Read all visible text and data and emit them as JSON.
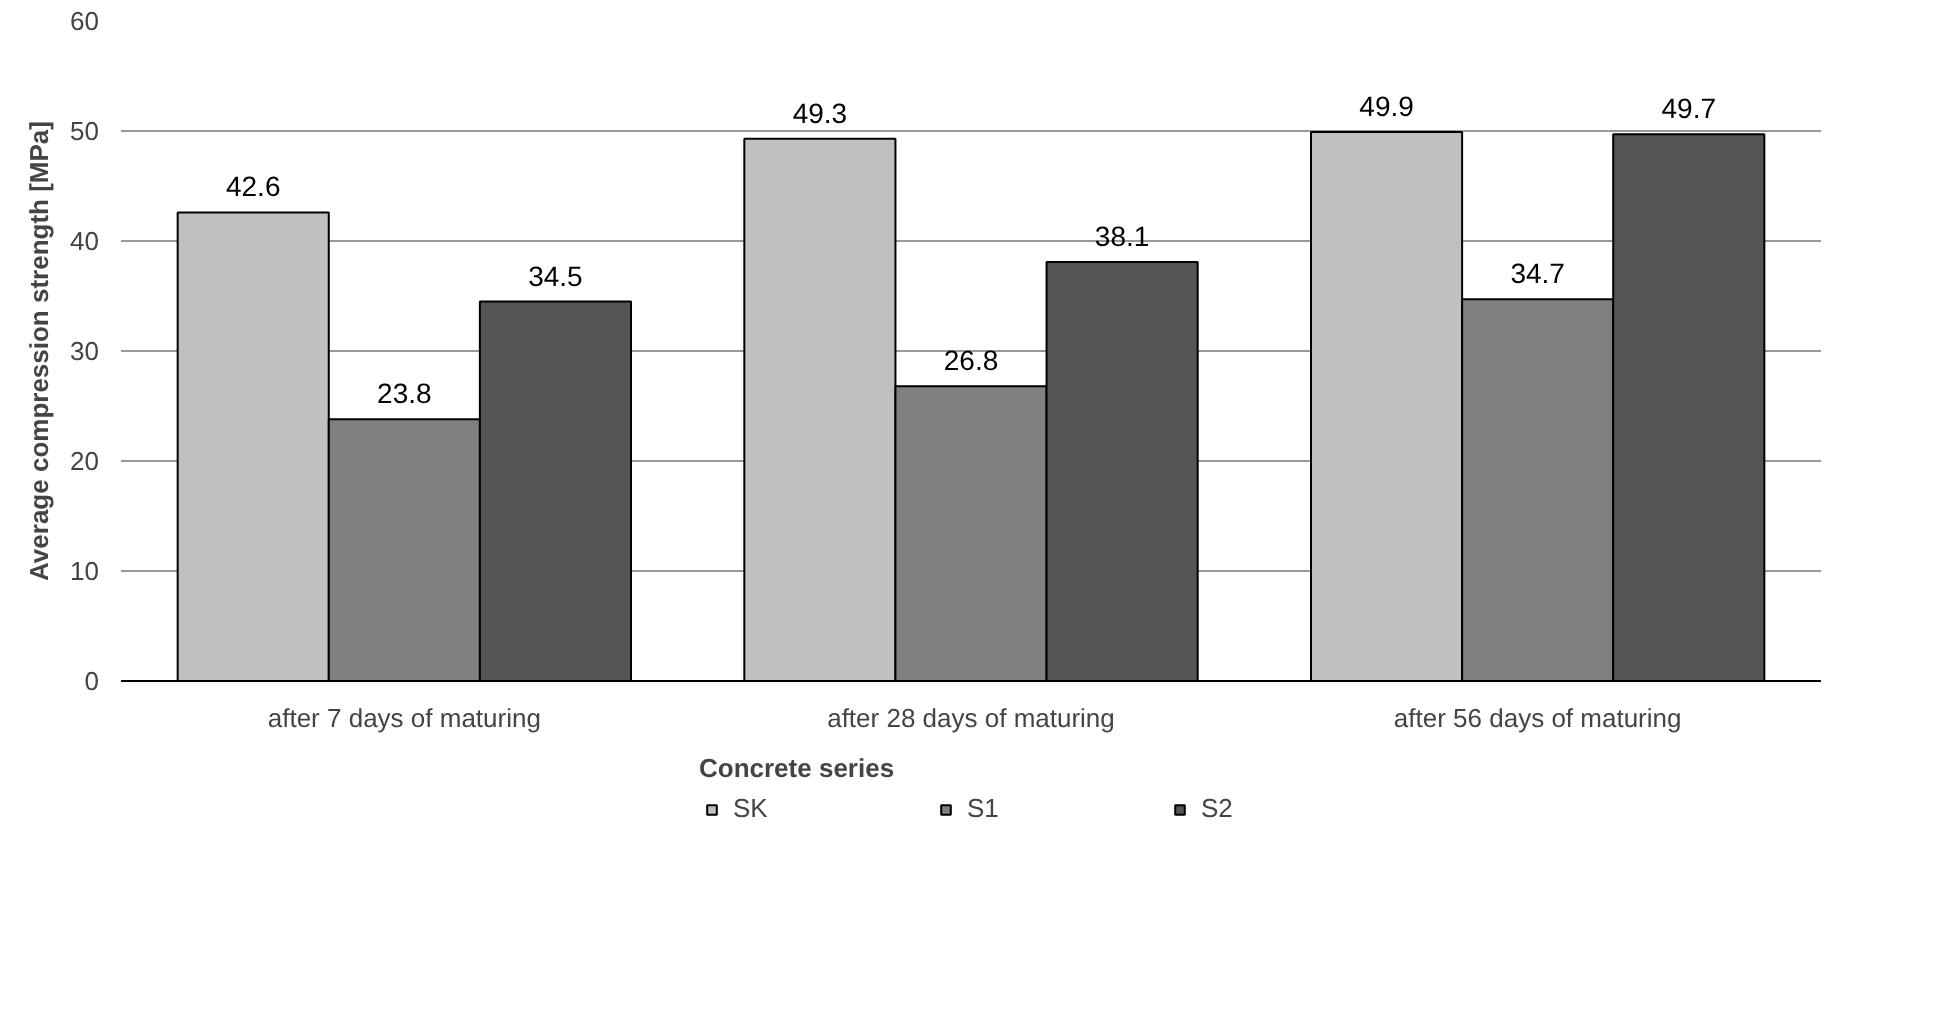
{
  "chart_data": {
    "type": "bar",
    "ylabel": "Average compression strength [MPa]",
    "legend_title": "Concrete series",
    "categories": [
      "after 7 days of maturing",
      "after 28 days of maturing",
      "after 56 days of maturing"
    ],
    "series": [
      {
        "name": "SK",
        "color": "#c0c0c0",
        "values": [
          42.6,
          49.3,
          49.9
        ]
      },
      {
        "name": "S1",
        "color": "#808080",
        "values": [
          23.8,
          26.8,
          34.7
        ]
      },
      {
        "name": "S2",
        "color": "#555555",
        "values": [
          34.5,
          38.1,
          49.7
        ]
      }
    ],
    "ylim": [
      0,
      60
    ],
    "yticks": [
      0,
      10,
      20,
      30,
      40,
      50,
      60
    ],
    "grid": "y",
    "legend": "bottom",
    "data_labels": true
  }
}
